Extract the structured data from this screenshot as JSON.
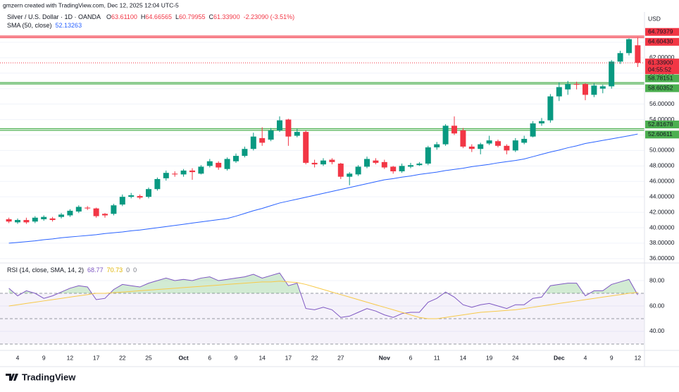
{
  "header": {
    "credit": "gmzern created with TradingView.com, Dec 12, 2025 12:04 UTC-5",
    "logo": "TradingView"
  },
  "legend": {
    "symbol": "Silver / U.S. Dollar · 1D · OANDA",
    "ohlc": [
      {
        "key": "O",
        "value": "63.61100"
      },
      {
        "key": "H",
        "value": "64.66565"
      },
      {
        "key": "L",
        "value": "60.79955"
      },
      {
        "key": "C",
        "value": "61.33900"
      }
    ],
    "change": "-2.23090 (-3.51%)",
    "sma_label": "SMA (50, close)",
    "sma_value": "52.13263",
    "rsi_label": "RSI (14, close, SMA, 14, 2)",
    "rsi_values": [
      "68.77",
      "70.73",
      "0",
      "0"
    ]
  },
  "chart_data": [
    {
      "type": "candlestick",
      "currency": "USD",
      "categories": [
        null,
        "4",
        null,
        null,
        "9",
        null,
        null,
        "12",
        null,
        null,
        "17",
        null,
        null,
        "22",
        null,
        null,
        "25",
        null,
        null,
        null,
        "Oct",
        null,
        null,
        "6",
        null,
        null,
        "9",
        null,
        null,
        "14",
        null,
        null,
        "17",
        null,
        null,
        "22",
        null,
        null,
        "27",
        null,
        null,
        null,
        null,
        "Nov",
        null,
        null,
        "6",
        null,
        null,
        "11",
        null,
        null,
        "14",
        null,
        null,
        "19",
        null,
        null,
        "24",
        null,
        null,
        null,
        null,
        "Dec",
        null,
        null,
        "4",
        null,
        null,
        "9",
        null,
        null,
        "12"
      ],
      "open": [
        41.1,
        40.7,
        41.0,
        40.8,
        41.1,
        41.2,
        41.4,
        41.6,
        42.1,
        42.6,
        42.5,
        41.8,
        41.8,
        43.0,
        44.0,
        44.1,
        44.0,
        45.0,
        46.4,
        47.0,
        46.9,
        47.4,
        47.0,
        48.0,
        48.4,
        47.6,
        48.6,
        49.3,
        50.2,
        51.6,
        51.4,
        52.6,
        54.0,
        51.9,
        52.4,
        48.4,
        48.2,
        48.8,
        48.3,
        46.6,
        46.9,
        47.9,
        48.7,
        48.5,
        47.9,
        47.3,
        47.9,
        48.1,
        48.3,
        50.4,
        50.8,
        53.2,
        52.6,
        50.5,
        50.2,
        50.9,
        51.2,
        50.6,
        50.0,
        51.0,
        51.8,
        53.5,
        53.9,
        57.0,
        57.9,
        58.6,
        58.6,
        57.2,
        58.0,
        58.3,
        61.5,
        62.6,
        63.611
      ],
      "high": [
        41.3,
        41.2,
        41.3,
        41.5,
        41.6,
        41.4,
        41.9,
        42.4,
        42.9,
        42.8,
        42.6,
        41.9,
        43.1,
        44.3,
        44.5,
        44.3,
        45.2,
        46.5,
        47.4,
        47.3,
        47.6,
        47.7,
        48.1,
        48.9,
        48.6,
        49.1,
        49.6,
        50.5,
        52.3,
        53.0,
        52.9,
        54.4,
        54.1,
        52.8,
        52.6,
        48.8,
        49.0,
        49.0,
        48.4,
        47.2,
        48.1,
        49.2,
        49.0,
        48.8,
        48.0,
        48.3,
        48.4,
        48.5,
        50.6,
        51.1,
        53.4,
        54.4,
        52.9,
        50.8,
        51.0,
        51.9,
        51.4,
        50.8,
        51.6,
        51.9,
        53.8,
        54.2,
        57.3,
        58.8,
        59.0,
        58.9,
        58.7,
        58.7,
        58.5,
        61.7,
        62.9,
        64.5,
        64.66565
      ],
      "low": [
        40.6,
        40.5,
        40.5,
        40.6,
        40.9,
        40.8,
        41.2,
        41.4,
        41.9,
        42.3,
        41.3,
        41.3,
        41.6,
        42.8,
        43.8,
        43.7,
        43.8,
        44.8,
        46.1,
        46.6,
        46.6,
        46.2,
        46.9,
        47.8,
        47.5,
        47.4,
        48.4,
        49.1,
        50.0,
        50.6,
        51.2,
        52.4,
        50.6,
        51.7,
        48.2,
        47.8,
        48.0,
        48.2,
        46.3,
        45.5,
        46.7,
        47.7,
        48.2,
        47.6,
        47.0,
        47.1,
        47.7,
        48.0,
        48.1,
        50.1,
        50.6,
        52.0,
        50.3,
        49.8,
        49.5,
        50.7,
        50.4,
        49.5,
        49.8,
        50.8,
        51.7,
        53.2,
        53.6,
        56.4,
        57.2,
        57.9,
        56.5,
        56.9,
        57.4,
        58.0,
        61.2,
        62.3,
        60.79955
      ],
      "close": [
        40.8,
        41.0,
        40.7,
        41.3,
        41.4,
        41.0,
        41.7,
        42.2,
        42.7,
        42.5,
        41.5,
        41.6,
        42.9,
        44.0,
        44.2,
        43.9,
        45.0,
        46.3,
        47.1,
        46.9,
        47.4,
        47.2,
        47.9,
        48.6,
        47.8,
        48.9,
        49.3,
        50.2,
        51.8,
        51.0,
        52.6,
        53.9,
        51.8,
        52.4,
        48.4,
        48.2,
        48.7,
        48.5,
        46.6,
        47.0,
        47.9,
        48.9,
        48.4,
        47.8,
        47.3,
        48.0,
        48.1,
        48.3,
        50.4,
        50.8,
        53.2,
        52.2,
        50.5,
        50.2,
        50.8,
        51.3,
        50.6,
        50.0,
        51.3,
        51.5,
        53.5,
        53.8,
        57.0,
        58.2,
        58.6,
        58.5,
        57.2,
        58.4,
        58.3,
        61.5,
        62.6,
        64.4,
        61.339
      ],
      "up_color": "#089981",
      "down_color": "#f23645",
      "sma": {
        "color": "#2962ff",
        "values": [
          38.0,
          38.1,
          38.2,
          38.3,
          38.45,
          38.55,
          38.7,
          38.8,
          38.9,
          39.0,
          39.1,
          39.25,
          39.35,
          39.45,
          39.6,
          39.7,
          39.85,
          40.0,
          40.15,
          40.3,
          40.45,
          40.6,
          40.75,
          40.9,
          41.05,
          41.2,
          41.5,
          41.85,
          42.2,
          42.5,
          42.85,
          43.2,
          43.45,
          43.7,
          43.95,
          44.2,
          44.45,
          44.7,
          44.95,
          45.2,
          45.45,
          45.7,
          45.95,
          46.2,
          46.35,
          46.55,
          46.7,
          46.9,
          47.05,
          47.2,
          47.4,
          47.55,
          47.7,
          47.9,
          48.05,
          48.2,
          48.4,
          48.55,
          48.7,
          48.9,
          49.2,
          49.5,
          49.8,
          50.05,
          50.35,
          50.6,
          50.9,
          51.1,
          51.3,
          51.5,
          51.7,
          51.9,
          52.13
        ]
      },
      "ylim": [
        35.53,
        67.92
      ],
      "yticks": [
        {
          "value": 36,
          "label": "36.00000"
        },
        {
          "value": 38,
          "label": "38.00000"
        },
        {
          "value": 40,
          "label": "40.00000"
        },
        {
          "value": 42,
          "label": "42.00000"
        },
        {
          "value": 44,
          "label": "44.00000"
        },
        {
          "value": 46,
          "label": "46.00000"
        },
        {
          "value": 48,
          "label": "48.00000"
        },
        {
          "value": 50,
          "label": "50.00000"
        },
        {
          "value": 52,
          "label": "52.00000"
        },
        {
          "value": 54,
          "label": "54.00000"
        },
        {
          "value": 56,
          "label": "56.00000"
        },
        {
          "value": 58,
          "label": "58.00000"
        },
        {
          "value": 60,
          "label": "60.00000"
        },
        {
          "value": 62,
          "label": "62.00000"
        },
        {
          "value": 64,
          "label": "64.00000"
        }
      ],
      "levels": [
        {
          "value": 64.79379,
          "label": "64.79379",
          "color": "#f23645"
        },
        {
          "value": 64.6043,
          "label": "64.60430",
          "color": "#f23645"
        },
        {
          "value": 58.78151,
          "label": "58.78151",
          "color": "#4caf50"
        },
        {
          "value": 58.60352,
          "label": "58.60352",
          "color": "#4caf50"
        },
        {
          "value": 52.81678,
          "label": "52.81678",
          "color": "#4caf50"
        },
        {
          "value": 52.60611,
          "label": "52.60611",
          "color": "#4caf50"
        }
      ],
      "last_label": "61.33900",
      "countdown": "04:55:52"
    },
    {
      "type": "line",
      "series": [
        {
          "color": "#7e57c2",
          "values": [
            74,
            68,
            72,
            70,
            66,
            68,
            71,
            74,
            76,
            75,
            65,
            66,
            73,
            77,
            76,
            75,
            78,
            80,
            82,
            80,
            81,
            80,
            82,
            83,
            80,
            81,
            82,
            83,
            85,
            82,
            84,
            86,
            76,
            78,
            58,
            57,
            59,
            57,
            51,
            52,
            55,
            58,
            56,
            53,
            51,
            54,
            55,
            55,
            63,
            66,
            71,
            67,
            61,
            59,
            61,
            62,
            60,
            58,
            61,
            61,
            66,
            67,
            76,
            77,
            78,
            78,
            68,
            72,
            72,
            77,
            79,
            81,
            68.77
          ]
        },
        {
          "color": "#f7c948",
          "values": [
            60,
            61,
            62,
            63,
            64,
            65,
            66,
            67,
            68,
            69,
            70,
            70,
            70.5,
            71,
            71.5,
            72,
            72.5,
            73,
            73.5,
            74,
            74.5,
            75,
            75.5,
            76,
            76.5,
            77,
            77.5,
            78,
            78.5,
            79,
            79,
            79.5,
            79,
            78.5,
            77,
            75,
            73,
            71,
            69,
            67,
            65,
            63,
            61,
            59,
            57,
            55,
            53,
            51,
            50,
            50,
            51,
            52,
            53,
            54,
            55,
            55.5,
            56,
            56.5,
            57,
            58,
            59,
            60,
            61,
            62,
            63,
            64,
            65,
            66,
            67,
            68,
            69,
            70,
            70.73
          ]
        }
      ],
      "ylim": [
        26.1,
        92.8
      ],
      "yticks": [
        {
          "value": 40,
          "label": "40.00"
        },
        {
          "value": 60,
          "label": "60.00"
        },
        {
          "value": 80,
          "label": "80.00"
        }
      ],
      "levels": [
        70,
        50,
        30
      ]
    }
  ]
}
